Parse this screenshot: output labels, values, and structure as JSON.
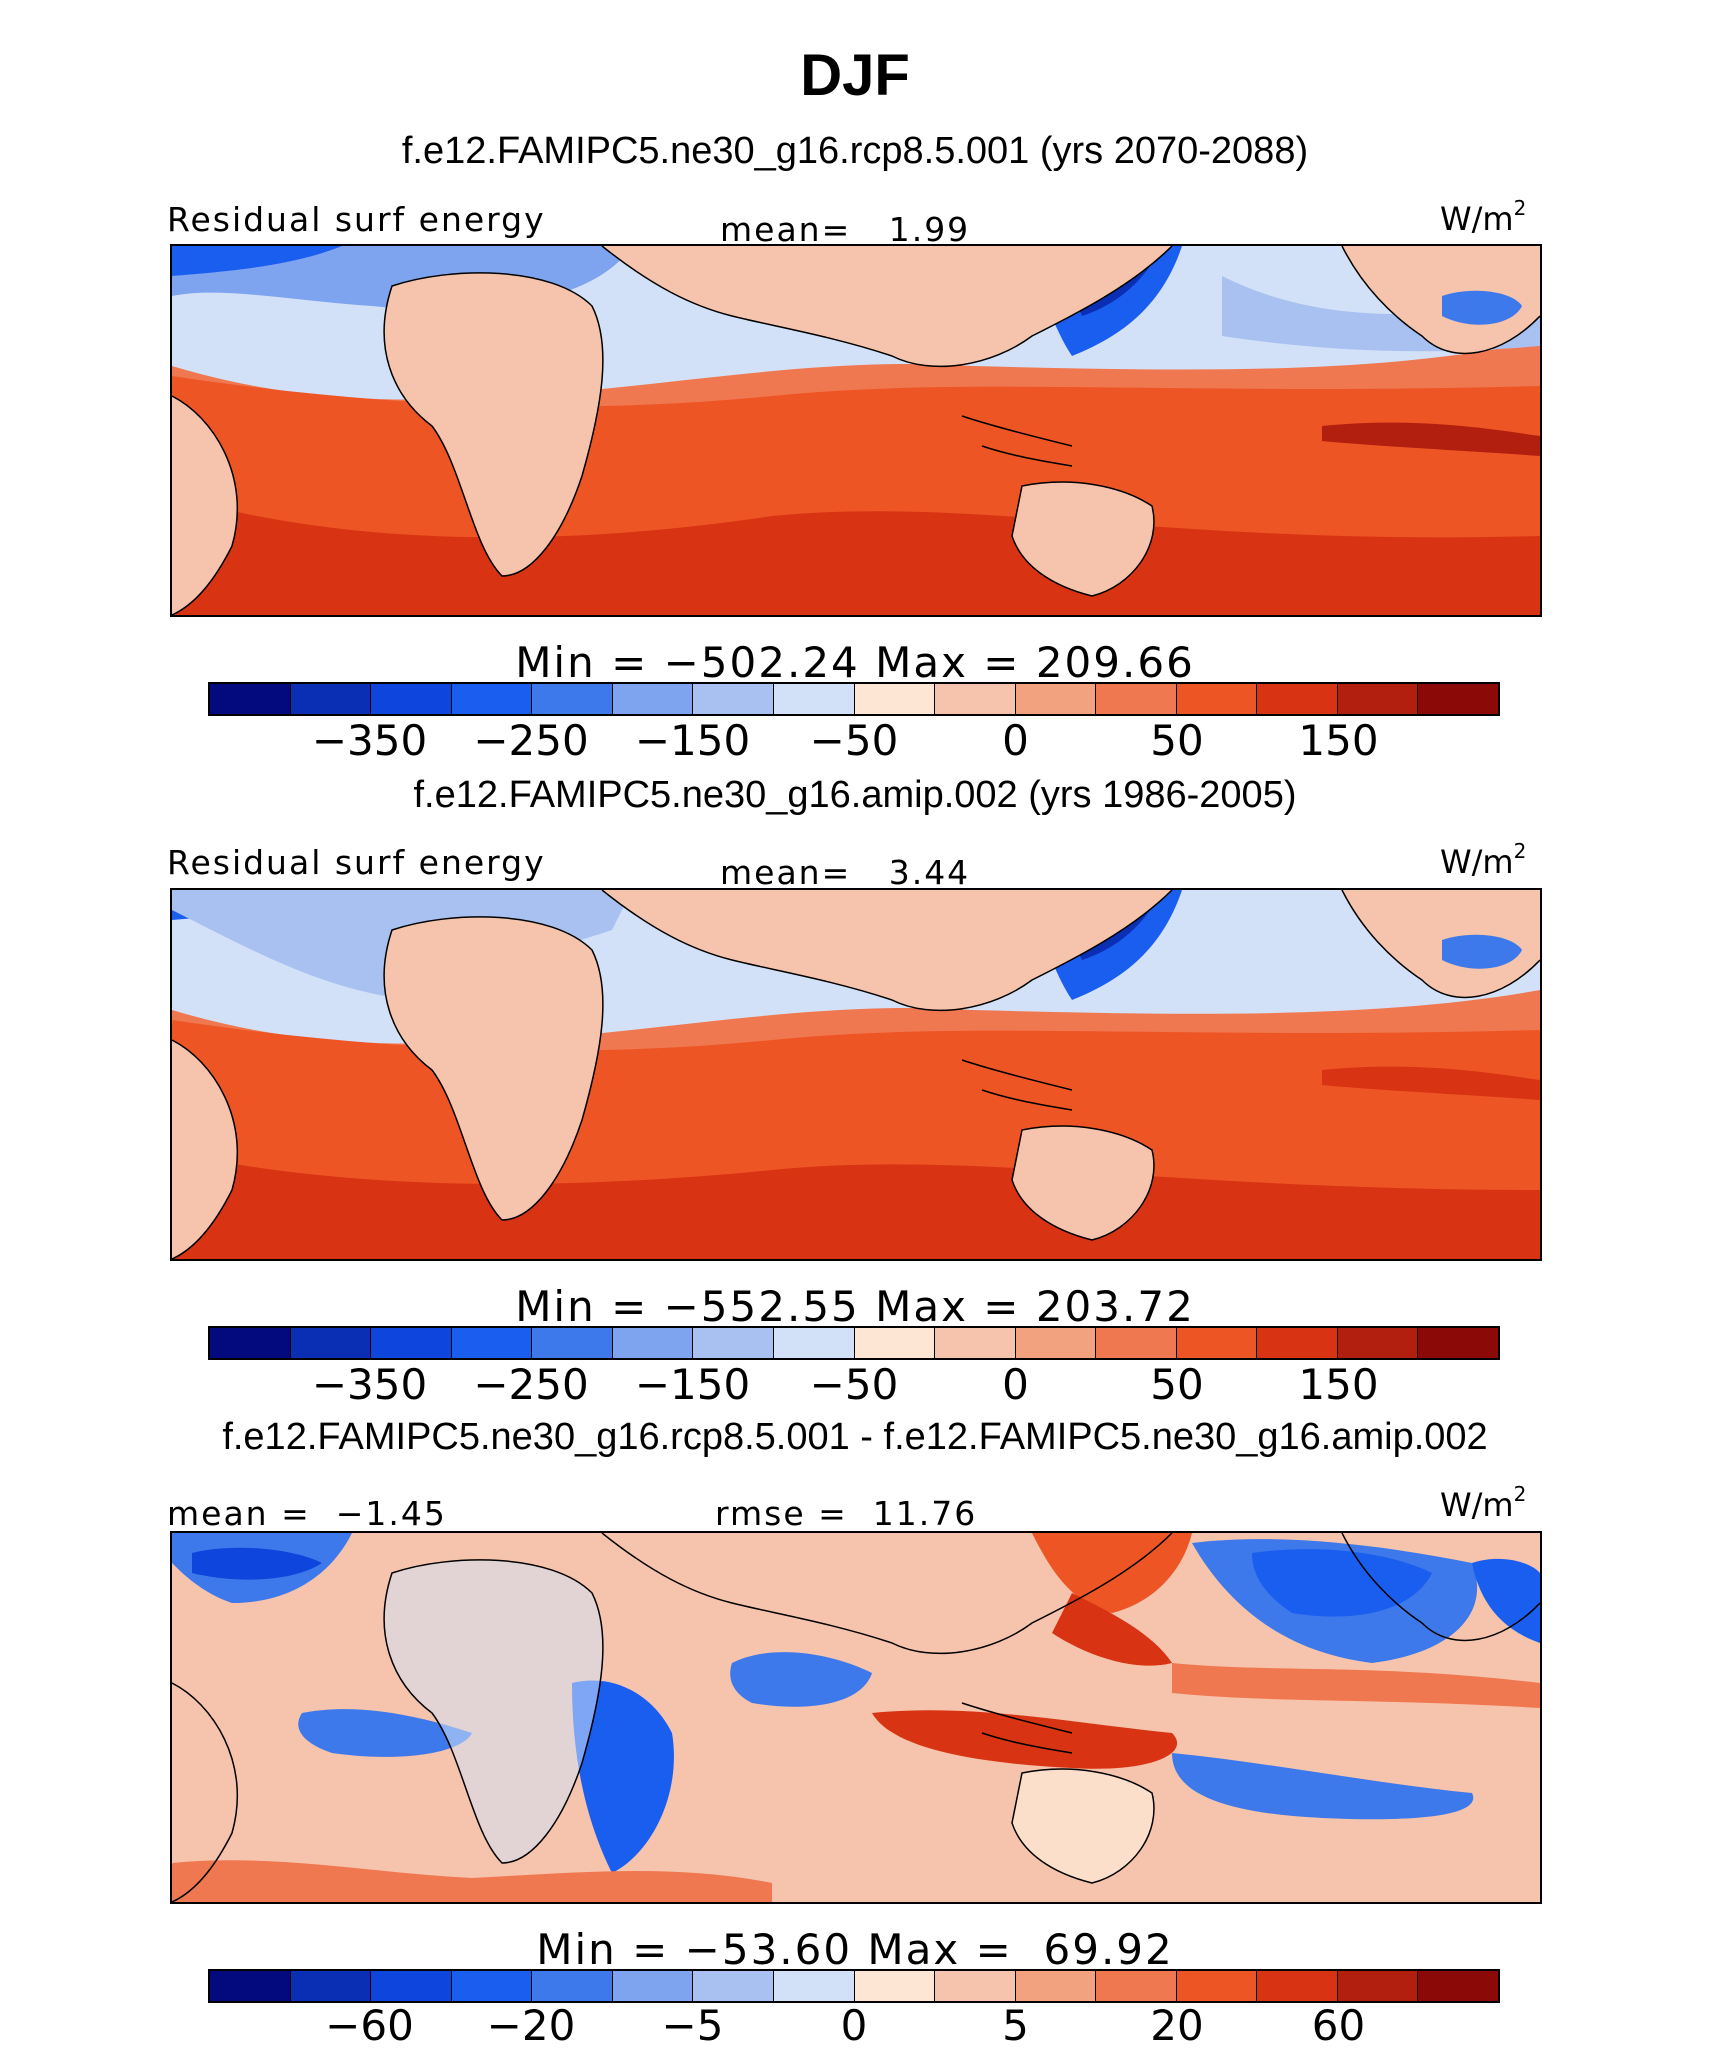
{
  "title": "DJF",
  "colors": {
    "abs_scale": [
      "#020a7d",
      "#0a2fb4",
      "#0e45dc",
      "#1a5ef0",
      "#3d79ea",
      "#7ea3ef",
      "#a8c1f0",
      "#d2e1f7",
      "#fde6d3",
      "#f6c3ac",
      "#f3a27f",
      "#f07850",
      "#ee5525",
      "#d83413",
      "#b21f0e",
      "#8b0a08"
    ],
    "diff_scale": [
      "#020a7d",
      "#0a2fb4",
      "#0e45dc",
      "#1a5ef0",
      "#3d79ea",
      "#7ea3ef",
      "#a8c1f0",
      "#d2e1f7",
      "#fde6d3",
      "#f6c3ac",
      "#f3a27f",
      "#f07850",
      "#ee5525",
      "#d83413",
      "#b21f0e",
      "#8b0a08"
    ]
  },
  "panels": [
    {
      "case_title": "f.e12.FAMIPC5.ne30_g16.rcp8.5.001 (yrs 2070-2088)",
      "left_label": "Residual surf energy",
      "center_label": "mean=   1.99",
      "units_base": "W/m",
      "units_exp": "2",
      "minmax": "Min = −502.24 Max = 209.66",
      "ticks": [
        "−350",
        "−250",
        "−150",
        "−50",
        "0",
        "50",
        "150"
      ],
      "type": "abs"
    },
    {
      "case_title": "f.e12.FAMIPC5.ne30_g16.amip.002 (yrs 1986-2005)",
      "left_label": "Residual surf energy",
      "center_label": "mean=   3.44",
      "units_base": "W/m",
      "units_exp": "2",
      "minmax": "Min = −552.55 Max = 203.72",
      "ticks": [
        "−350",
        "−250",
        "−150",
        "−50",
        "0",
        "50",
        "150"
      ],
      "type": "abs"
    },
    {
      "case_title": "f.e12.FAMIPC5.ne30_g16.rcp8.5.001 - f.e12.FAMIPC5.ne30_g16.amip.002",
      "left_label": "mean =  −1.45",
      "center_label": "rmse =  11.76",
      "units_base": "W/m",
      "units_exp": "2",
      "minmax": "Min = −53.60 Max =  69.92",
      "ticks": [
        "−60",
        "−20",
        "−5",
        "0",
        "5",
        "20",
        "60"
      ],
      "type": "diff"
    }
  ]
}
